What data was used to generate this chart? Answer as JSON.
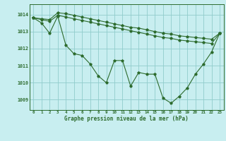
{
  "title": "Graphe pression niveau de la mer (hPa)",
  "background_color": "#c8eef0",
  "plot_bg_color": "#c8eef0",
  "grid_color": "#90cccc",
  "line_color": "#2d6b2d",
  "xlim": [
    -0.5,
    23.5
  ],
  "ylim": [
    1008.4,
    1014.6
  ],
  "yticks": [
    1009,
    1010,
    1011,
    1012,
    1013,
    1014
  ],
  "xticks": [
    0,
    1,
    2,
    3,
    4,
    5,
    6,
    7,
    8,
    9,
    10,
    11,
    12,
    13,
    14,
    15,
    16,
    17,
    18,
    19,
    20,
    21,
    22,
    23
  ],
  "series_main_x": [
    0,
    1,
    2,
    3,
    4,
    5,
    6,
    7,
    8,
    9,
    10,
    11,
    12,
    13,
    14,
    15,
    16,
    17,
    18,
    19,
    20,
    21,
    22,
    23
  ],
  "series_main_y": [
    1013.8,
    1013.5,
    1012.9,
    1013.9,
    1012.2,
    1011.7,
    1011.6,
    1011.1,
    1010.4,
    1010.0,
    1011.3,
    1011.3,
    1009.8,
    1010.6,
    1010.5,
    1010.5,
    1009.1,
    1008.8,
    1009.2,
    1009.7,
    1010.5,
    1011.1,
    1011.8,
    1012.9
  ],
  "series_upper_x": [
    0,
    1,
    2,
    3,
    4,
    5,
    6,
    7,
    8,
    9,
    10,
    11,
    12,
    13,
    14,
    15,
    16,
    17,
    18,
    19,
    20,
    21,
    22,
    23
  ],
  "series_upper_y": [
    1013.8,
    1013.75,
    1013.7,
    1014.1,
    1014.05,
    1013.95,
    1013.85,
    1013.75,
    1013.65,
    1013.55,
    1013.45,
    1013.35,
    1013.25,
    1013.2,
    1013.1,
    1013.0,
    1012.9,
    1012.85,
    1012.75,
    1012.7,
    1012.65,
    1012.6,
    1012.55,
    1012.9
  ],
  "series_lower_x": [
    0,
    1,
    2,
    3,
    4,
    5,
    6,
    7,
    8,
    9,
    10,
    11,
    12,
    13,
    14,
    15,
    16,
    17,
    18,
    19,
    20,
    21,
    22,
    23
  ],
  "series_lower_y": [
    1013.8,
    1013.7,
    1013.6,
    1013.95,
    1013.85,
    1013.75,
    1013.65,
    1013.55,
    1013.45,
    1013.35,
    1013.25,
    1013.15,
    1013.05,
    1012.95,
    1012.85,
    1012.75,
    1012.65,
    1012.6,
    1012.5,
    1012.45,
    1012.4,
    1012.35,
    1012.3,
    1012.9
  ]
}
